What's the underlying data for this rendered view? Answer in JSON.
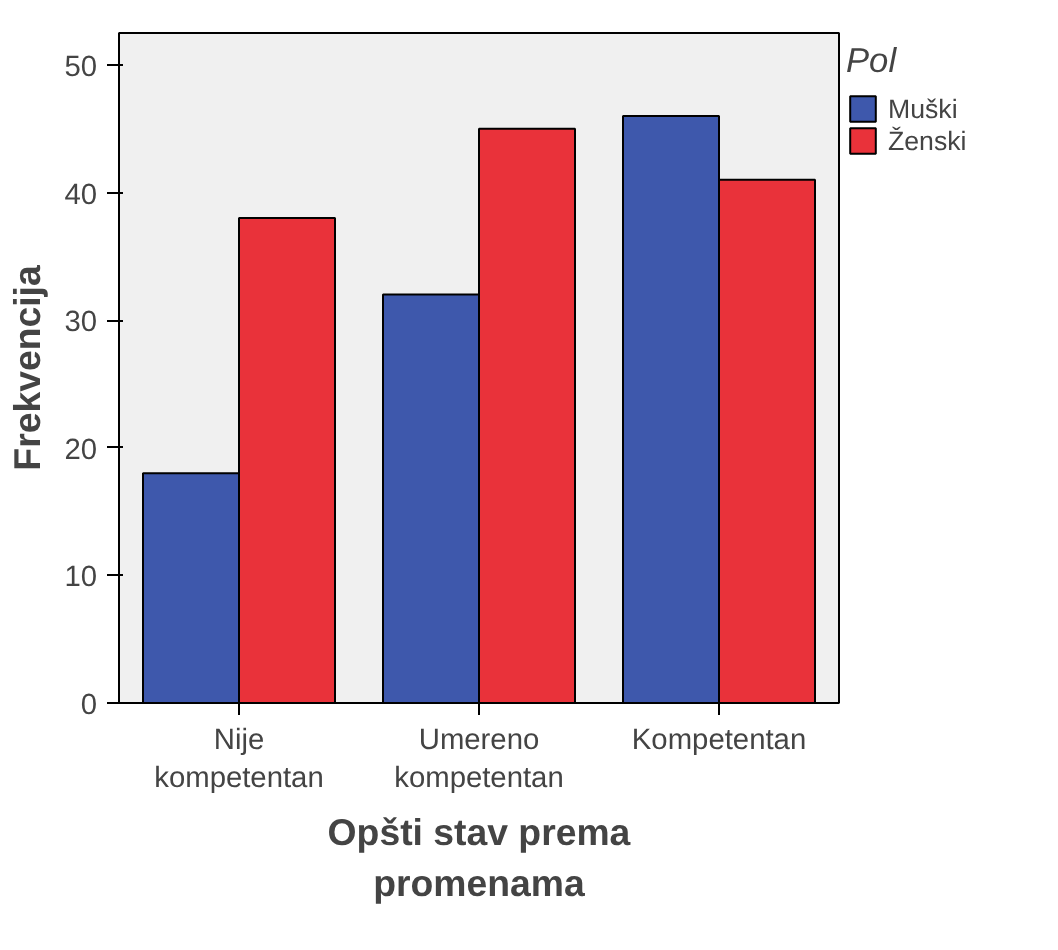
{
  "chart_data": {
    "type": "bar",
    "xlabel": "Opšti stav prema\npromenama",
    "ylabel": "Frekvencija",
    "legend_title": "Pol",
    "categories": [
      "Nije\nkompetentan",
      "Umereno\nkompetentan",
      "Kompetentan"
    ],
    "series": [
      {
        "name": "Muški",
        "color": "#3e58ac",
        "values": [
          18,
          32,
          46
        ]
      },
      {
        "name": "Ženski",
        "color": "#e9323a",
        "values": [
          38,
          45,
          41
        ]
      }
    ],
    "ylim": [
      0,
      52.5
    ],
    "yticks": [
      0,
      10,
      20,
      30,
      40,
      50
    ],
    "grid": false,
    "legend": "right"
  }
}
